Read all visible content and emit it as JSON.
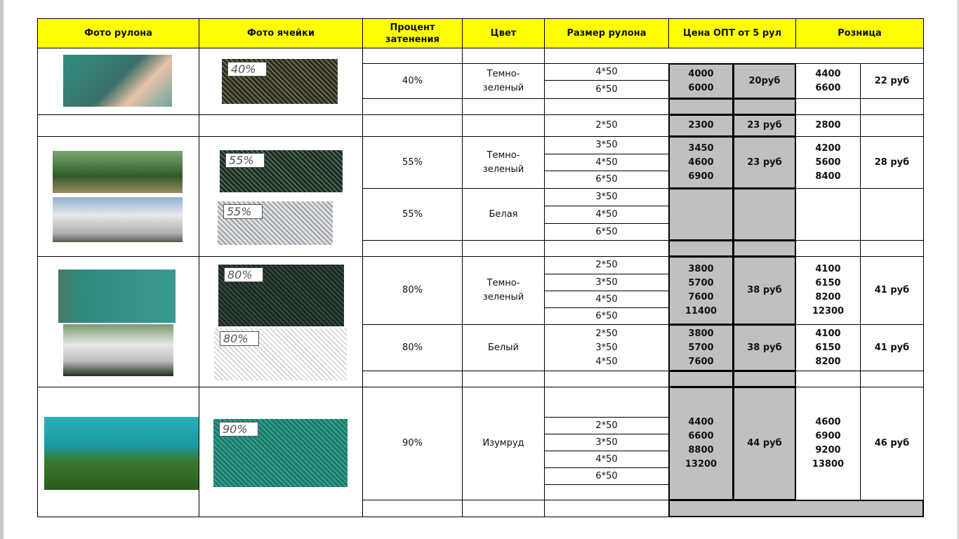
{
  "headers": [
    "Фото рулона",
    "Фото ячейки",
    "Процент\nзатенения",
    "Цвет",
    "Размер рулона",
    "Цена ОПТ от 5 рул",
    "Розница"
  ],
  "rows": {
    "r40": {
      "percent": "40%",
      "color": "Темно-\nзеленый",
      "sizes": [
        "4*50",
        "6*50"
      ],
      "opt_qty": "4000\n6000",
      "opt_price": "20руб",
      "retail_qty": "4400\n6600",
      "retail_price": "22 руб",
      "cell_label": "40%"
    },
    "r2": {
      "size": "2*50",
      "opt_qty": "2300",
      "opt_price": "23 руб",
      "retail_qty": "2800"
    },
    "r55g": {
      "percent": "55%",
      "color": "Темно-\nзеленый",
      "sizes": [
        "3*50",
        "4*50",
        "6*50"
      ],
      "opt_qty": "3450\n4600\n6900",
      "opt_price": "23 руб",
      "retail_qty": "4200\n5600\n8400",
      "retail_price": "28 руб",
      "cell_label": "55%"
    },
    "r55w": {
      "percent": "55%",
      "color": "Белая",
      "sizes": [
        "3*50",
        "4*50",
        "6*50"
      ],
      "cell_label": "55%"
    },
    "r80g": {
      "percent": "80%",
      "color": "Темно-\nзеленый",
      "sizes": [
        "2*50",
        "3*50",
        "4*50",
        "6*50"
      ],
      "opt_qty": "3800\n5700\n7600\n11400",
      "opt_price": "38 руб",
      "retail_qty": "4100\n6150\n8200\n12300",
      "retail_price": "41 руб",
      "cell_label": "80%"
    },
    "r80w": {
      "percent": "80%",
      "color": "Белый",
      "sizes": "2*50\n3*50\n4*50",
      "opt_qty": "3800\n5700\n7600",
      "opt_price": "38 руб",
      "retail_qty": "4100\n6150\n8200",
      "retail_price": "41 руб",
      "cell_label": "80%"
    },
    "r90": {
      "percent": "90%",
      "color": "Изумруд",
      "sizes": [
        "2*50",
        "3*50",
        "4*50",
        "6*50"
      ],
      "opt_qty": "4400\n6600\n8800\n13200",
      "opt_price": "44 руб",
      "retail_qty": "4600\n6900\n9200\n13800",
      "retail_price": "46 руб",
      "cell_label": "90%"
    }
  },
  "colors": {
    "header": "#ffff00",
    "opt_cells": "#c0c0c0"
  }
}
